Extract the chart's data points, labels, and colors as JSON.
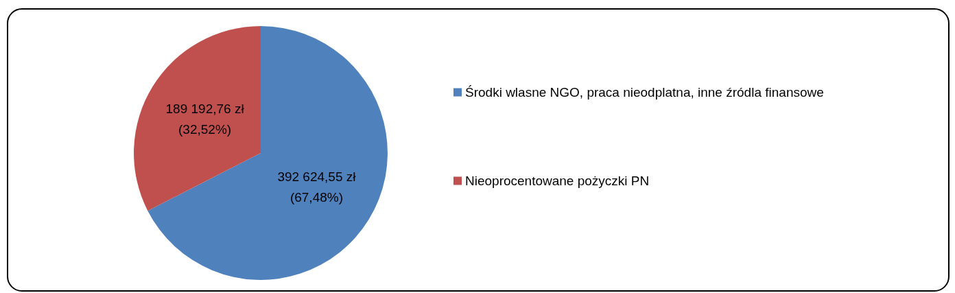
{
  "chart_data": {
    "type": "pie",
    "categories": [
      "Środki wlasne NGO, praca nieodplatna, inne źródla finansowe",
      "Nieoprocentowane pożyczki PN"
    ],
    "values": [
      392624.55,
      189192.76
    ],
    "colors": [
      "#4f81bd",
      "#c0504d"
    ],
    "value_labels": [
      "392 624,55 zł\n(67,48%)",
      "189 192,76 zł\n(32,52%)"
    ],
    "legend": "right"
  }
}
